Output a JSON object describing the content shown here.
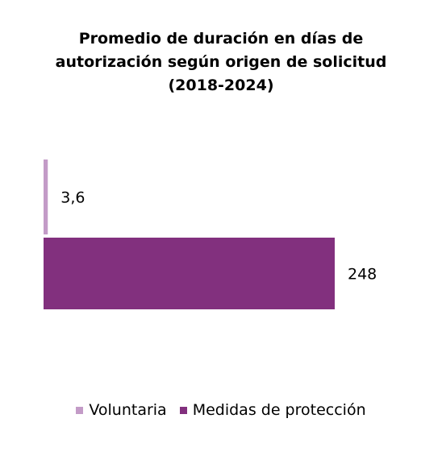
{
  "chart_data": {
    "type": "bar",
    "orientation": "horizontal",
    "title": "Promedio de duración en días de\nautorización según origen de solicitud\n(2018-2024)",
    "series": [
      {
        "name": "Voluntaria",
        "value": 3.6,
        "label": "3,6",
        "color": "#c39bc7"
      },
      {
        "name": "Medidas de protección",
        "value": 248,
        "label": "248",
        "color": "#82307e"
      }
    ],
    "xlim": [
      0,
      248
    ],
    "grid": false,
    "legend_position": "bottom"
  }
}
